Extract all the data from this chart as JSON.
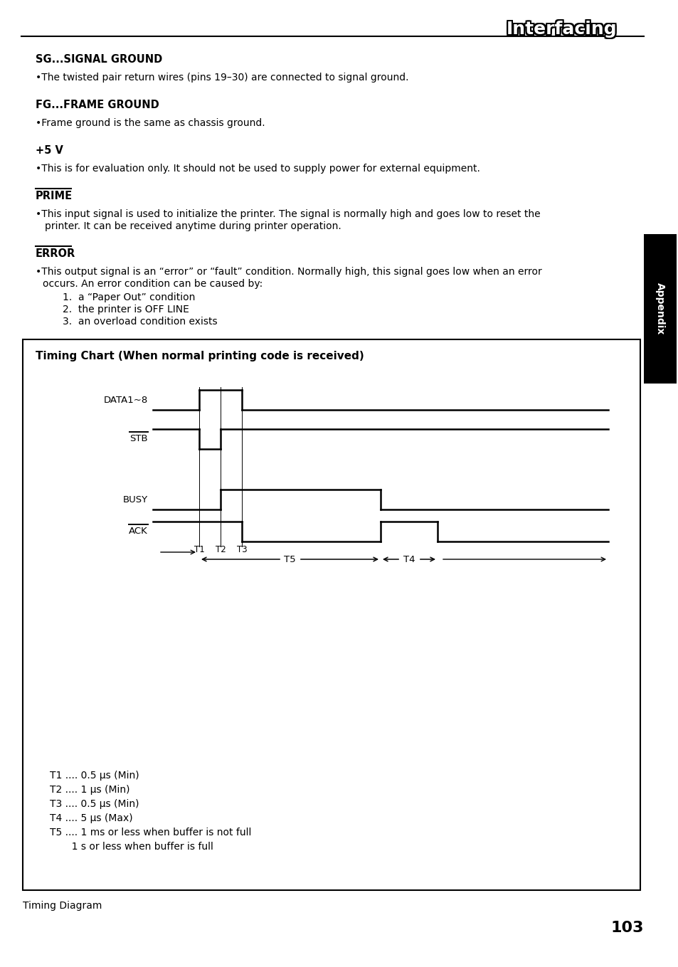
{
  "title_header": "Interfacing",
  "sections": [
    {
      "heading": "SG...SIGNAL GROUND",
      "bold": true,
      "text": "•The twisted pair return wires (pins 19–30) are connected to signal ground."
    },
    {
      "heading": "FG...FRAME GROUND",
      "bold": true,
      "text": "•Frame ground is the same as chassis ground."
    },
    {
      "heading": "+5 V",
      "bold": true,
      "text": "•This is for evaluation only. It should not be used to supply power for external equipment."
    },
    {
      "heading": "PRIME",
      "overline": true,
      "bold": true,
      "text1": "•This input signal is used to initialize the printer. The signal is normally high and goes low to reset the",
      "text2": "  printer. It can be received anytime during printer operation."
    },
    {
      "heading": "ERROR",
      "overline": true,
      "bold": true,
      "text1": "•This output signal is an “error” or “fault” condition. Normally high, this signal goes low when an error",
      "text2": " occurs. An error condition can be caused by:",
      "items": [
        "1.  a “Paper Out” condition",
        "2.  the printer is OFF LINE",
        "3.  an overload condition exists"
      ]
    }
  ],
  "timing_chart_title": "Timing Chart (When normal printing code is received)",
  "timing_notes": [
    "T1 .... 0.5 μs (Min)",
    "T2 .... 1 μs (Min)",
    "T3 .... 0.5 μs (Min)",
    "T4 .... 5 μs (Max)",
    "T5 .... 1 ms or less when buffer is not full",
    "       1 s or less when buffer is full"
  ],
  "appendix_label": "Appendix",
  "page_number": "103",
  "caption": "Timing Diagram",
  "background_color": "#ffffff",
  "text_color": "#000000",
  "header_font_size": 18,
  "heading_font_size": 10.5,
  "body_font_size": 10,
  "timing_title_font_size": 11,
  "signal_font_size": 9.5,
  "t_label_font_size": 8.5,
  "note_font_size": 10,
  "page_font_size": 16
}
